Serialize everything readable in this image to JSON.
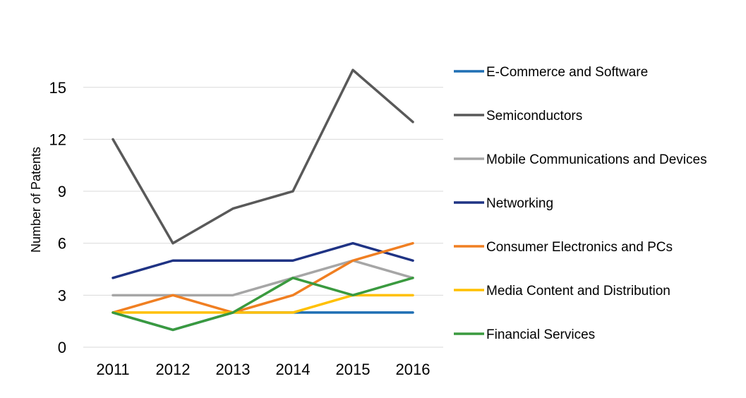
{
  "chart_data": {
    "type": "line",
    "title": "",
    "xlabel": "",
    "ylabel": "Number  of Patents",
    "ylim": [
      0,
      16.5
    ],
    "yticks": [
      0,
      3,
      6,
      9,
      12,
      15
    ],
    "grid": "horizontal",
    "legend_position": "right",
    "x": [
      "2011",
      "2012",
      "2013",
      "2014",
      "2015",
      "2016"
    ],
    "series": [
      {
        "name": "E-Commerce and Software",
        "color": "#1f6fb4",
        "values": [
          2,
          1,
          2,
          2,
          2,
          2
        ]
      },
      {
        "name": "Semiconductors",
        "color": "#595959",
        "values": [
          12,
          6,
          8,
          9,
          16,
          13
        ]
      },
      {
        "name": "Mobile Communications and Devices",
        "color": "#a6a6a6",
        "values": [
          3,
          3,
          3,
          4,
          5,
          4
        ]
      },
      {
        "name": "Networking",
        "color": "#1f3384",
        "values": [
          4,
          5,
          5,
          5,
          6,
          5
        ]
      },
      {
        "name": "Consumer Electronics and PCs",
        "color": "#f07f22",
        "values": [
          2,
          3,
          2,
          3,
          5,
          6
        ]
      },
      {
        "name": "Media Content and Distribution",
        "color": "#ffc000",
        "values": [
          2,
          2,
          2,
          2,
          3,
          3
        ]
      },
      {
        "name": "Financial Services",
        "color": "#3a9a3f",
        "values": [
          2,
          1,
          2,
          4,
          3,
          4
        ]
      }
    ]
  }
}
